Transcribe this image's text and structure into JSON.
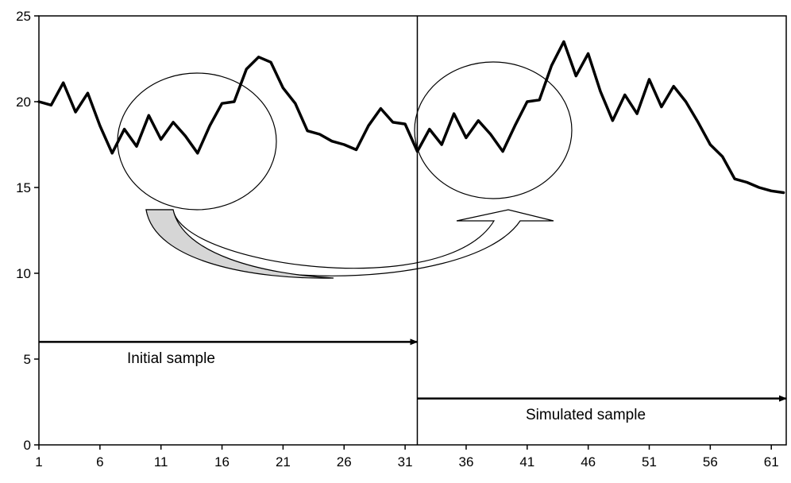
{
  "chart_data": {
    "type": "line",
    "title": "",
    "xlabel": "",
    "ylabel": "",
    "ylim": [
      0,
      25
    ],
    "xlim": [
      1,
      62
    ],
    "y_ticks": [
      0,
      5,
      10,
      15,
      20,
      25
    ],
    "x_ticks": [
      1,
      6,
      11,
      16,
      21,
      26,
      31,
      36,
      41,
      46,
      51,
      56,
      61
    ],
    "grid": false,
    "legend": "none",
    "series": [
      {
        "x": [
          1,
          2,
          3,
          4,
          5,
          6,
          7,
          8,
          9,
          10,
          11,
          12,
          13,
          14,
          15,
          16,
          17,
          18,
          19,
          20,
          21,
          22,
          23,
          24,
          25,
          26,
          27,
          28,
          29,
          30,
          31,
          32,
          33,
          34,
          35,
          36,
          37,
          38,
          39,
          40,
          41,
          42,
          43,
          44,
          45,
          46,
          47,
          48,
          49,
          50,
          51,
          52,
          53,
          54,
          55,
          56,
          57,
          58,
          59,
          60,
          61,
          62
        ],
        "values": [
          20.0,
          19.8,
          21.1,
          19.4,
          20.5,
          18.6,
          17.0,
          18.4,
          17.4,
          19.2,
          17.8,
          18.8,
          18.0,
          17.0,
          18.6,
          19.9,
          20.0,
          21.9,
          22.6,
          22.3,
          20.8,
          19.9,
          18.3,
          18.1,
          17.7,
          17.5,
          17.2,
          18.6,
          19.6,
          18.8,
          18.7,
          17.1,
          18.4,
          17.5,
          19.3,
          17.9,
          18.9,
          18.1,
          17.1,
          18.6,
          20.0,
          20.1,
          22.1,
          23.5,
          21.5,
          22.8,
          20.6,
          18.9,
          20.4,
          19.3,
          21.3,
          19.7,
          20.9,
          20.0,
          18.8,
          17.5,
          16.8,
          15.5,
          15.3,
          15.0,
          14.8,
          14.7
        ],
        "color": "#000000"
      }
    ],
    "divider_x": 32,
    "annotations": {
      "initial_label": "Initial sample",
      "simulated_label": "Simulated sample"
    }
  }
}
